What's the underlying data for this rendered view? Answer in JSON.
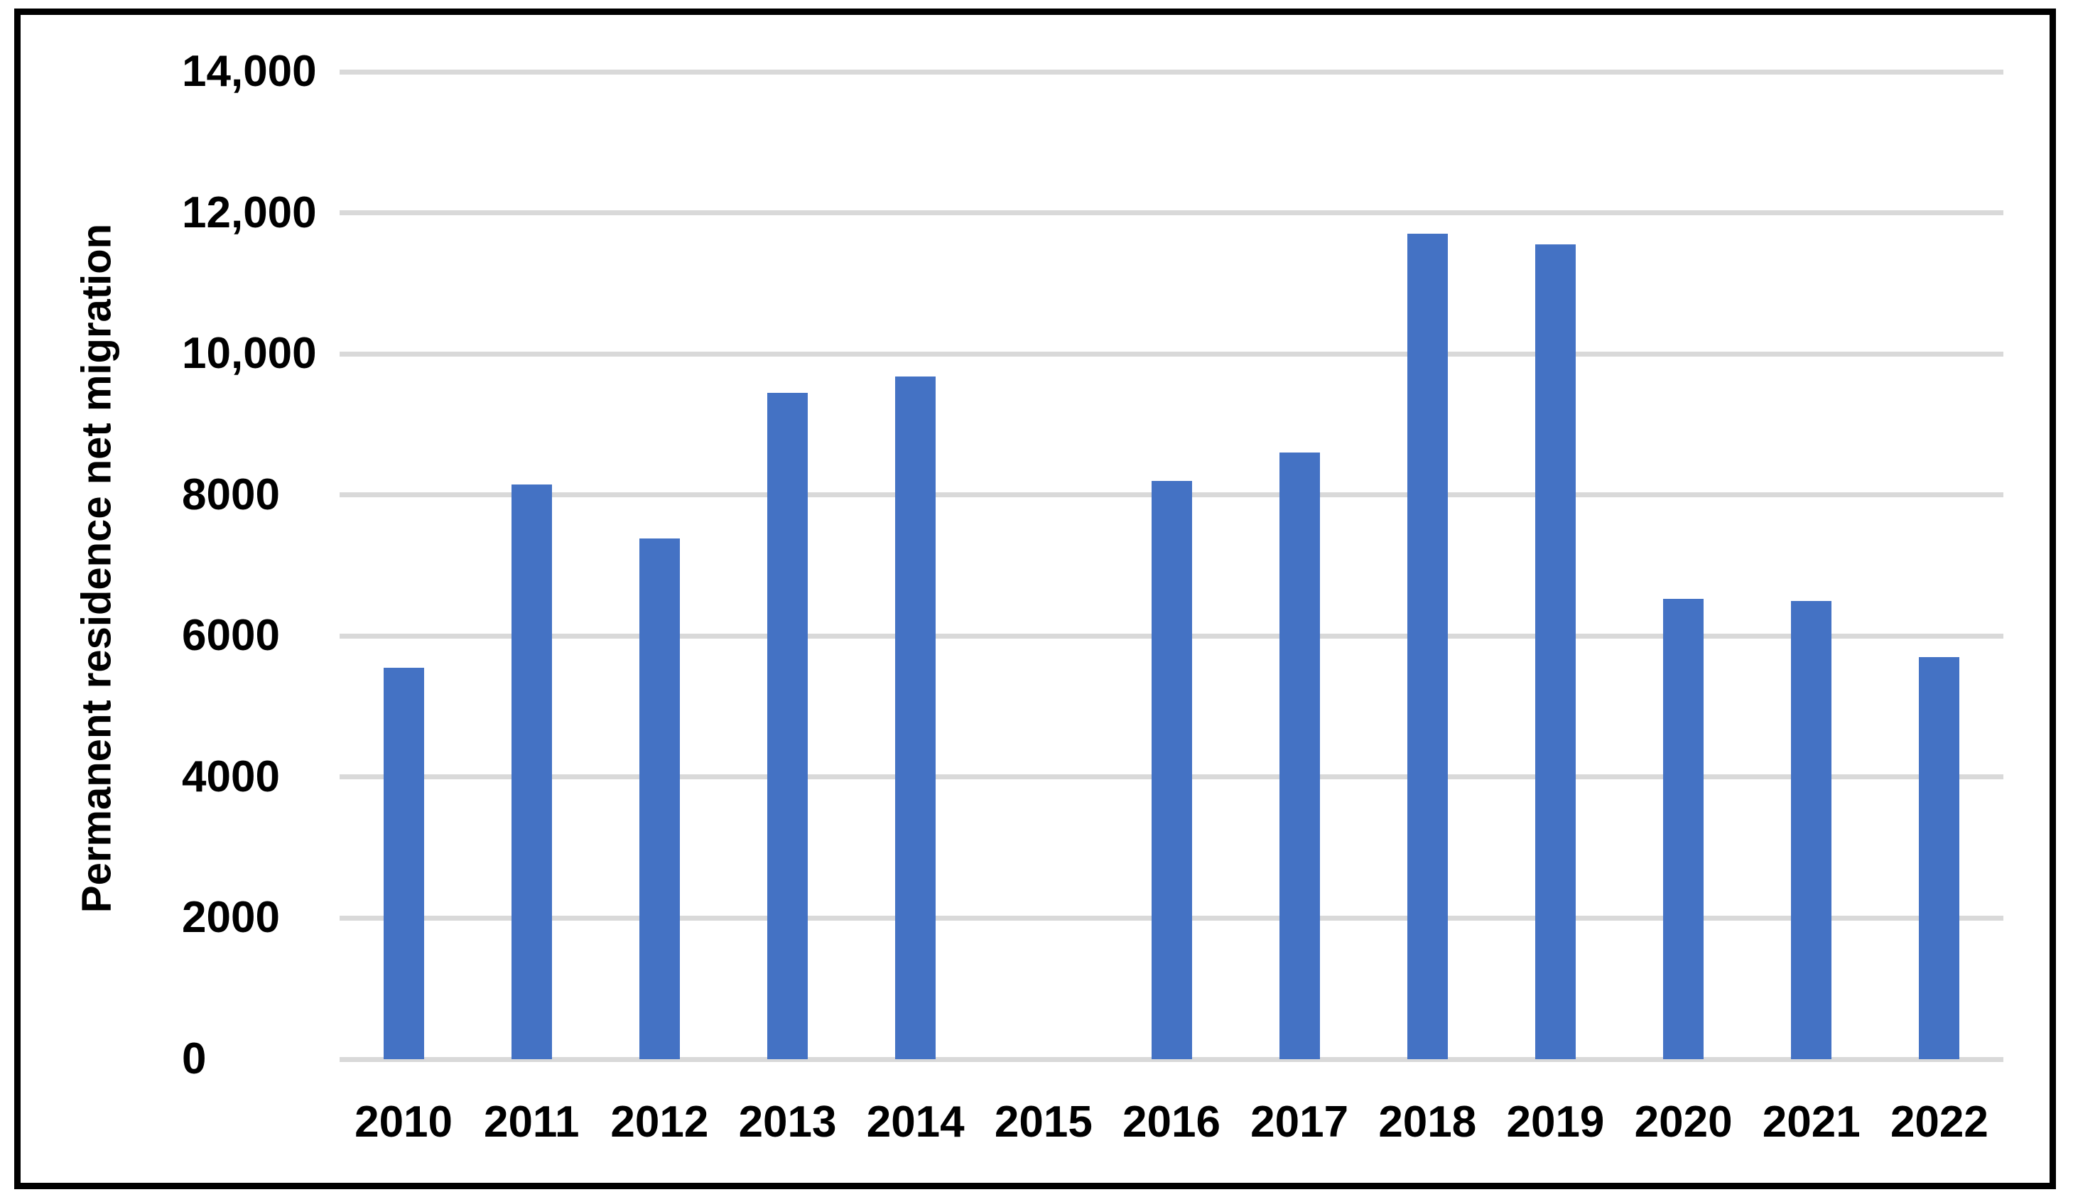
{
  "figure": {
    "background_color": "#ffffff",
    "border_color": "#000000"
  },
  "chart_data": {
    "type": "bar",
    "title": "",
    "xlabel": "",
    "ylabel": "Permanent residence net migration",
    "categories": [
      "2010",
      "2011",
      "2012",
      "2013",
      "2014",
      "2015",
      "2016",
      "2017",
      "2018",
      "2019",
      "2020",
      "2021",
      "2022"
    ],
    "values": [
      5550,
      8150,
      7380,
      9450,
      9680,
      0,
      8200,
      8600,
      11700,
      11550,
      6530,
      6500,
      5700
    ],
    "ylim": [
      0,
      14000
    ],
    "ytick_step": 2000,
    "yticks": [
      {
        "value": 0,
        "label": "0"
      },
      {
        "value": 2000,
        "label": "2000"
      },
      {
        "value": 4000,
        "label": "4000"
      },
      {
        "value": 6000,
        "label": "6000"
      },
      {
        "value": 8000,
        "label": "8000"
      },
      {
        "value": 10000,
        "label": "10,000"
      },
      {
        "value": 12000,
        "label": "12,000"
      },
      {
        "value": 14000,
        "label": "14,000"
      }
    ],
    "grid": "horizontal",
    "legend": "none",
    "bar_color": "#4472C4",
    "gridline_color": "#D9D9D9"
  }
}
